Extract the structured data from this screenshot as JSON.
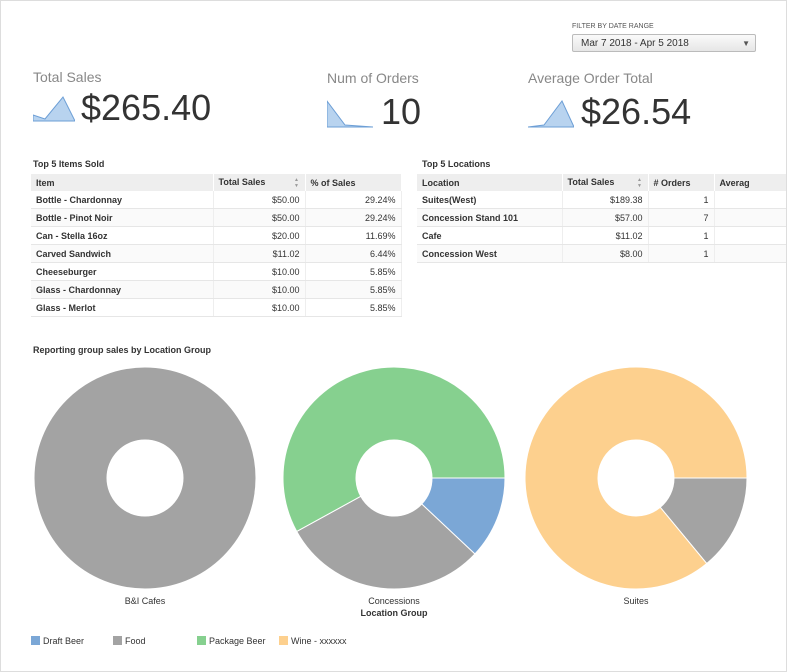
{
  "filter": {
    "label": "FILTER BY DATE RANGE",
    "value": "Mar 7 2018 - Apr 5 2018"
  },
  "kpis": [
    {
      "label": "Total Sales",
      "value": "$265.40"
    },
    {
      "label": "Num of Orders",
      "value": "10"
    },
    {
      "label": "Average Order Total",
      "value": "$26.54"
    }
  ],
  "items_table": {
    "title": "Top 5 Items Sold",
    "columns": [
      "Item",
      "Total Sales",
      "% of Sales"
    ],
    "rows": [
      [
        "Bottle - Chardonnay",
        "$50.00",
        "29.24%"
      ],
      [
        "Bottle - Pinot Noir",
        "$50.00",
        "29.24%"
      ],
      [
        "Can - Stella 16oz",
        "$20.00",
        "11.69%"
      ],
      [
        "Carved Sandwich",
        "$11.02",
        "6.44%"
      ],
      [
        "Cheeseburger",
        "$10.00",
        "5.85%"
      ],
      [
        "Glass - Chardonnay",
        "$10.00",
        "5.85%"
      ],
      [
        "Glass - Merlot",
        "$10.00",
        "5.85%"
      ]
    ]
  },
  "locations_table": {
    "title": "Top 5 Locations",
    "columns": [
      "Location",
      "Total Sales",
      "# Orders",
      "Averag"
    ],
    "rows": [
      [
        "Suites(West)",
        "$189.38",
        "1"
      ],
      [
        "Concession Stand 101",
        "$57.00",
        "7"
      ],
      [
        "Cafe",
        "$11.02",
        "1"
      ],
      [
        "Concession West",
        "$8.00",
        "1"
      ]
    ]
  },
  "chart_data": {
    "type": "donut",
    "title": "Reporting group sales by Location Group",
    "x_label": "Location Group",
    "categories": [
      "B&I Cafes",
      "Concessions",
      "Suites"
    ],
    "series": [
      {
        "name": "Draft Beer",
        "color": "#7ba7d6",
        "values": [
          0,
          12,
          0
        ]
      },
      {
        "name": "Food",
        "color": "#a3a3a3",
        "values": [
          100,
          30,
          14
        ]
      },
      {
        "name": "Package Beer",
        "color": "#86d08f",
        "values": [
          0,
          58,
          0
        ]
      },
      {
        "name": "Wine - xxxxxx",
        "color": "#fdd08e",
        "values": [
          0,
          0,
          86
        ]
      }
    ]
  }
}
